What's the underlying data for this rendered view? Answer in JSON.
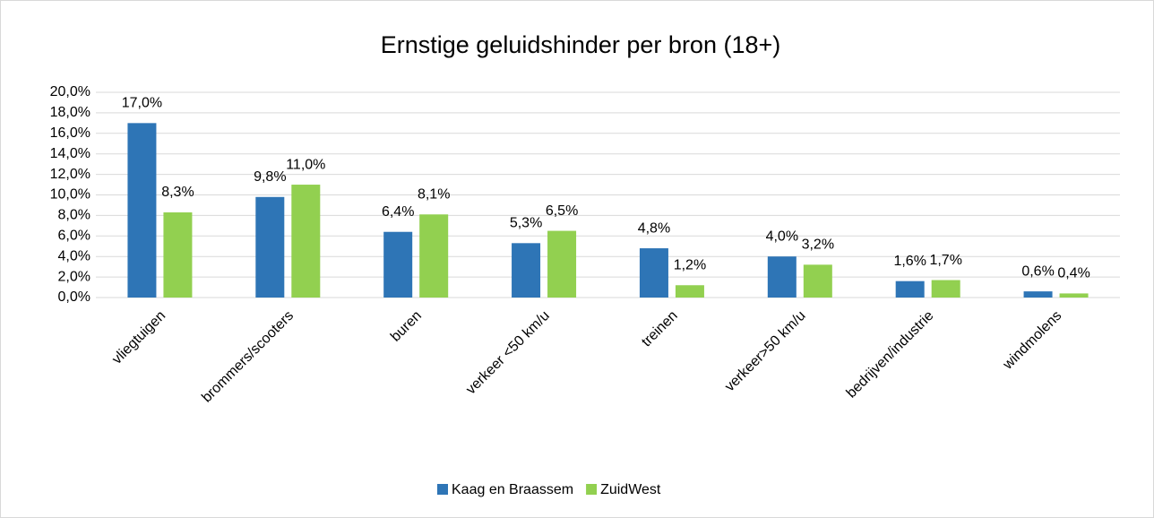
{
  "chart_data": {
    "type": "bar",
    "title": "Ernstige geluidshinder per bron (18+)",
    "categories": [
      "vliegtuigen",
      "brommers/scooters",
      "buren",
      "verkeer <50 km/u",
      "treinen",
      "verkeer>50 km/u",
      "bedrijven/industrie",
      "windmolens"
    ],
    "series": [
      {
        "name": "Kaag en Braassem",
        "color": "#2e75b6",
        "values": [
          17.0,
          9.8,
          6.4,
          5.3,
          4.8,
          4.0,
          1.6,
          0.6
        ],
        "value_labels": [
          "17,0%",
          "9,8%",
          "6,4%",
          "5,3%",
          "4,8%",
          "4,0%",
          "1,6%",
          "0,6%"
        ]
      },
      {
        "name": "ZuidWest",
        "color": "#92d050",
        "values": [
          8.3,
          11.0,
          8.1,
          6.5,
          1.2,
          3.2,
          1.7,
          0.4
        ],
        "value_labels": [
          "8,3%",
          "11,0%",
          "8,1%",
          "6,5%",
          "1,2%",
          "3,2%",
          "1,7%",
          "0,4%"
        ]
      }
    ],
    "ylim": [
      0,
      20
    ],
    "yticks": [
      {
        "value": 0,
        "label": "0,0%"
      },
      {
        "value": 2,
        "label": "2,0%"
      },
      {
        "value": 4,
        "label": "4,0%"
      },
      {
        "value": 6,
        "label": "6,0%"
      },
      {
        "value": 8,
        "label": "8,0%"
      },
      {
        "value": 10,
        "label": "10,0%"
      },
      {
        "value": 12,
        "label": "12,0%"
      },
      {
        "value": 14,
        "label": "14,0%"
      },
      {
        "value": 16,
        "label": "16,0%"
      },
      {
        "value": 18,
        "label": "18,0%"
      },
      {
        "value": 20,
        "label": "20,0%"
      }
    ],
    "grid": true,
    "legend": "bottom"
  }
}
